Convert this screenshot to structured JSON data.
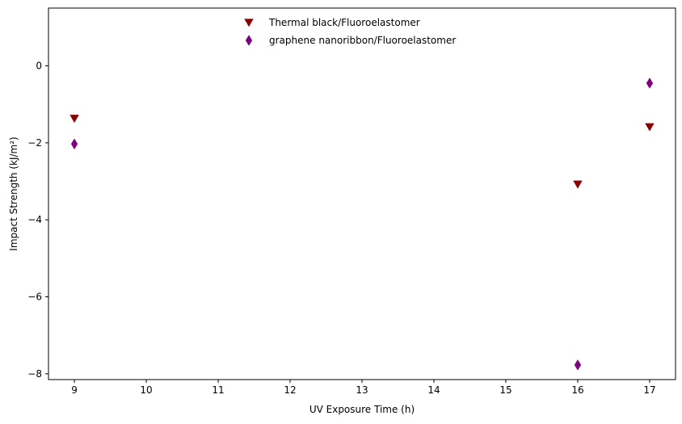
{
  "chart_data": {
    "type": "scatter",
    "xlabel": "UV Exposure Time (h)",
    "ylabel": "Impact Strength (kJ/m²)",
    "xlim": [
      8.64,
      17.36
    ],
    "ylim": [
      -8.15,
      1.5
    ],
    "xticks": [
      9,
      10,
      11,
      12,
      13,
      14,
      15,
      16,
      17
    ],
    "yticks": [
      -8,
      -6,
      -4,
      -2,
      0
    ],
    "ytick_labels": [
      "−8",
      "−6",
      "−4",
      "−2",
      "0"
    ],
    "grid": false,
    "legend_position": "top-center",
    "series": [
      {
        "name": "Thermal black/Fluoroelastomer",
        "marker": "triangle-down",
        "color": "#8b0000",
        "points": [
          {
            "x": 9,
            "y": -1.37
          },
          {
            "x": 16,
            "y": -3.08
          },
          {
            "x": 17,
            "y": -1.59
          }
        ]
      },
      {
        "name": "graphene nanoribbon/Fluoroelastomer",
        "marker": "thin-diamond",
        "color": "#800080",
        "points": [
          {
            "x": 9,
            "y": -2.03
          },
          {
            "x": 16,
            "y": -7.77
          },
          {
            "x": 17,
            "y": -0.45
          }
        ]
      }
    ]
  }
}
